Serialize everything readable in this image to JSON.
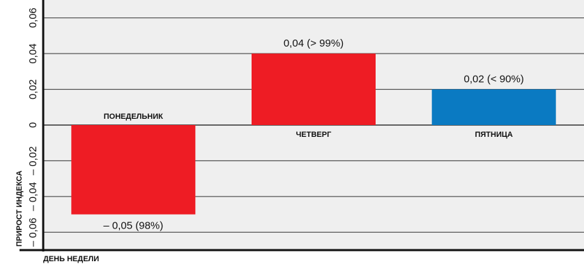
{
  "chart_data": {
    "type": "bar",
    "categories": [
      "ПОНЕДЕЛЬНИК",
      "ЧЕТВЕРГ",
      "ПЯТНИЦА"
    ],
    "values": [
      -0.05,
      0.04,
      0.02
    ],
    "data_labels": [
      "– 0,05 (98%)",
      "0,04 (> 99%)",
      "0,02 (< 90%)"
    ],
    "bar_colors": [
      "#ee1c24",
      "#ee1c24",
      "#0a7ac2"
    ],
    "xlabel": "ДЕНЬ НЕДЕЛИ",
    "ylabel": "ПРИРОСТ ИНДЕКСА",
    "ylim": [
      -0.07,
      0.07
    ],
    "yticks": [
      -0.06,
      -0.04,
      -0.02,
      0,
      0.02,
      0.04,
      0.06
    ],
    "ytick_labels": [
      "– 0,06",
      "– 0,04",
      "– 0,02",
      "0",
      "0,02",
      "0,04",
      "0,06"
    ],
    "grid": true,
    "plot_bg": "#efefef",
    "grid_color": "#333333"
  }
}
